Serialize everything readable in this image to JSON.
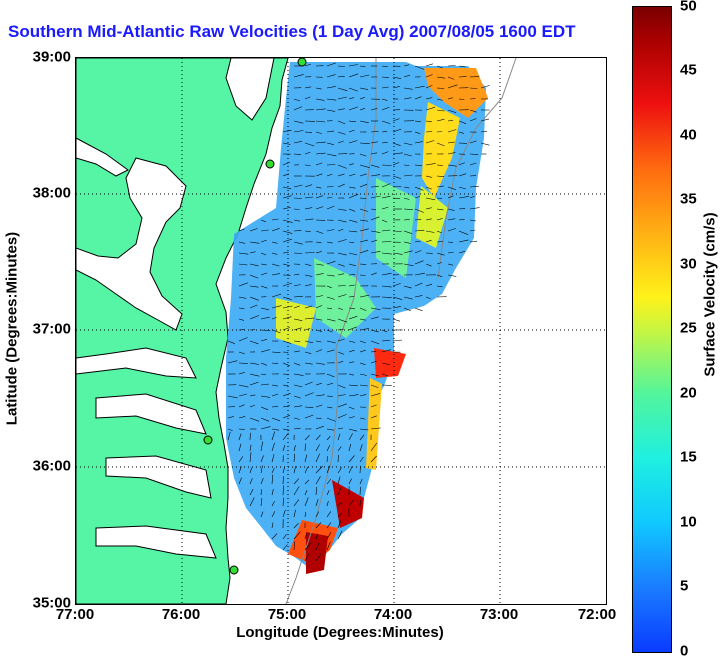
{
  "title": "Southern Mid-Atlantic Raw Velocities (1 Day Avg) 2007/08/05 1600 EDT",
  "map": {
    "type": "current-velocity-map",
    "region": "Southern Mid-Atlantic",
    "xlabel": "Longitude (Degrees:Minutes)",
    "ylabel": "Latitude (Degrees:Minutes)",
    "x_ticks": [
      "77:00",
      "76:00",
      "75:00",
      "74:00",
      "73:00",
      "72:00"
    ],
    "y_ticks": [
      "39:00",
      "38:00",
      "37:00",
      "36:00",
      "35:00"
    ],
    "grid": "dotted",
    "colors": {
      "land": "#55f5a5",
      "coast": "#000000",
      "ocean": "#ffffff",
      "title": "#1a1aff"
    }
  },
  "colorbar": {
    "label": "Surface Velocity (cm/s)",
    "ticks": [
      "50",
      "45",
      "40",
      "35",
      "30",
      "25",
      "20",
      "15",
      "10",
      "5",
      "0"
    ],
    "range": [
      0,
      50
    ]
  }
}
